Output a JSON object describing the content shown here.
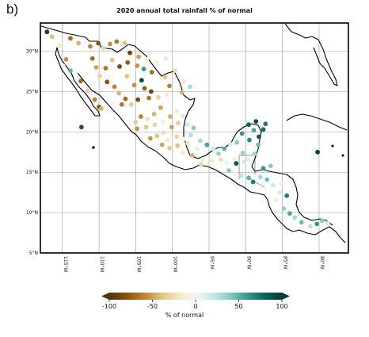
{
  "panel_label": "b)",
  "title": "2020 annual total rainfall % of normal",
  "lat_labels": [
    "30°N",
    "25°N",
    "20°N",
    "15°N",
    "10°N",
    "5°N"
  ],
  "lon_labels": [
    "115°W",
    "110°W",
    "105°W",
    "100°W",
    "95°W",
    "90°W",
    "85°W",
    "80°W"
  ],
  "colorbar": {
    "label": "% of normal",
    "ticks": [
      "-100",
      "-50",
      "0",
      "50",
      "100"
    ],
    "range": [
      -100,
      100
    ],
    "palette": [
      "#543005",
      "#8c510a",
      "#bf812d",
      "#dfc27d",
      "#f6e8c3",
      "#f5f5f5",
      "#c7eae5",
      "#80cdc1",
      "#35978f",
      "#01665e",
      "#003c30"
    ]
  },
  "map": {
    "lon_range": [
      -118,
      -76
    ],
    "lat_range": [
      5,
      33.5
    ],
    "projection": "plate-carree",
    "grid": true
  },
  "stations": [
    {
      "lon": -113.9,
      "lat": 31.6,
      "v": -70
    },
    {
      "lon": -112.8,
      "lat": 31.0,
      "v": -45
    },
    {
      "lon": -111.2,
      "lat": 30.6,
      "v": -60
    },
    {
      "lon": -110.1,
      "lat": 31.0,
      "v": -80
    },
    {
      "lon": -109.4,
      "lat": 30.4,
      "v": -30
    },
    {
      "lon": -108.5,
      "lat": 30.9,
      "v": -55
    },
    {
      "lon": -107.6,
      "lat": 31.2,
      "v": -65
    },
    {
      "lon": -106.5,
      "lat": 31.0,
      "v": -40
    },
    {
      "lon": -105.8,
      "lat": 29.8,
      "v": -90
    },
    {
      "lon": -104.6,
      "lat": 29.3,
      "v": -50
    },
    {
      "lon": -103.5,
      "lat": 29.0,
      "v": -20
    },
    {
      "lon": -102.2,
      "lat": 28.6,
      "v": -10
    },
    {
      "lon": -100.9,
      "lat": 29.1,
      "v": 10
    },
    {
      "lon": -99.6,
      "lat": 27.6,
      "v": -25
    },
    {
      "lon": -98.4,
      "lat": 26.2,
      "v": -15
    },
    {
      "lon": -97.6,
      "lat": 25.6,
      "v": 30
    },
    {
      "lon": -98.7,
      "lat": 24.9,
      "v": -45
    },
    {
      "lon": -100.4,
      "lat": 25.7,
      "v": -60
    },
    {
      "lon": -101.0,
      "lat": 26.8,
      "v": -35
    },
    {
      "lon": -102.8,
      "lat": 27.4,
      "v": -70
    },
    {
      "lon": -103.9,
      "lat": 27.8,
      "v": 60
    },
    {
      "lon": -104.8,
      "lat": 28.2,
      "v": -55
    },
    {
      "lon": -106.1,
      "lat": 28.6,
      "v": -75
    },
    {
      "lon": -107.2,
      "lat": 28.1,
      "v": -85
    },
    {
      "lon": -108.2,
      "lat": 28.9,
      "v": -40
    },
    {
      "lon": -109.1,
      "lat": 27.9,
      "v": -65
    },
    {
      "lon": -110.4,
      "lat": 28.0,
      "v": -50
    },
    {
      "lon": -110.9,
      "lat": 29.1,
      "v": -70
    },
    {
      "lon": -109.9,
      "lat": 26.9,
      "v": -30
    },
    {
      "lon": -108.9,
      "lat": 26.2,
      "v": -80
    },
    {
      "lon": -107.9,
      "lat": 25.6,
      "v": -60
    },
    {
      "lon": -107.3,
      "lat": 24.8,
      "v": -45
    },
    {
      "lon": -106.4,
      "lat": 24.1,
      "v": -70
    },
    {
      "lon": -105.6,
      "lat": 23.4,
      "v": -35
    },
    {
      "lon": -104.7,
      "lat": 24.0,
      "v": -85
    },
    {
      "lon": -103.8,
      "lat": 25.4,
      "v": -75
    },
    {
      "lon": -102.9,
      "lat": 25.0,
      "v": -90
    },
    {
      "lon": -103.2,
      "lat": 24.2,
      "v": -65
    },
    {
      "lon": -104.2,
      "lat": 26.4,
      "v": 95
    },
    {
      "lon": -105.2,
      "lat": 25.8,
      "v": -55
    },
    {
      "lon": -106.2,
      "lat": 26.9,
      "v": -40
    },
    {
      "lon": -101.9,
      "lat": 24.3,
      "v": -30
    },
    {
      "lon": -100.8,
      "lat": 24.6,
      "v": -20
    },
    {
      "lon": -101.6,
      "lat": 23.0,
      "v": -50
    },
    {
      "lon": -102.5,
      "lat": 22.2,
      "v": -45
    },
    {
      "lon": -103.4,
      "lat": 21.6,
      "v": -25
    },
    {
      "lon": -104.3,
      "lat": 21.9,
      "v": -60
    },
    {
      "lon": -105.0,
      "lat": 21.2,
      "v": -35
    },
    {
      "lon": -104.8,
      "lat": 20.4,
      "v": -55
    },
    {
      "lon": -103.6,
      "lat": 20.6,
      "v": -40
    },
    {
      "lon": -102.4,
      "lat": 20.9,
      "v": -30
    },
    {
      "lon": -101.3,
      "lat": 21.3,
      "v": -10
    },
    {
      "lon": -100.3,
      "lat": 21.9,
      "v": -45
    },
    {
      "lon": -99.4,
      "lat": 22.6,
      "v": -20
    },
    {
      "lon": -98.6,
      "lat": 22.0,
      "v": 15
    },
    {
      "lon": -99.2,
      "lat": 21.1,
      "v": -35
    },
    {
      "lon": -100.1,
      "lat": 20.6,
      "v": -50
    },
    {
      "lon": -101.2,
      "lat": 19.9,
      "v": -25
    },
    {
      "lon": -102.1,
      "lat": 19.5,
      "v": -40
    },
    {
      "lon": -103.0,
      "lat": 19.2,
      "v": -55
    },
    {
      "lon": -100.6,
      "lat": 19.0,
      "v": -15
    },
    {
      "lon": -99.4,
      "lat": 19.4,
      "v": -30
    },
    {
      "lon": -98.5,
      "lat": 19.1,
      "v": -5
    },
    {
      "lon": -97.5,
      "lat": 19.6,
      "v": 25
    },
    {
      "lon": -97.1,
      "lat": 20.5,
      "v": 40
    },
    {
      "lon": -98.0,
      "lat": 20.9,
      "v": 20
    },
    {
      "lon": -97.9,
      "lat": 18.6,
      "v": -20
    },
    {
      "lon": -99.3,
      "lat": 18.3,
      "v": -40
    },
    {
      "lon": -100.4,
      "lat": 18.0,
      "v": -35
    },
    {
      "lon": -101.4,
      "lat": 18.4,
      "v": -50
    },
    {
      "lon": -98.6,
      "lat": 17.4,
      "v": -15
    },
    {
      "lon": -97.3,
      "lat": 17.1,
      "v": -45
    },
    {
      "lon": -96.6,
      "lat": 17.9,
      "v": 10
    },
    {
      "lon": -96.2,
      "lat": 18.9,
      "v": 30
    },
    {
      "lon": -95.3,
      "lat": 18.4,
      "v": 55
    },
    {
      "lon": -94.4,
      "lat": 17.9,
      "v": 20
    },
    {
      "lon": -93.7,
      "lat": 17.3,
      "v": 35
    },
    {
      "lon": -92.9,
      "lat": 17.9,
      "v": 50
    },
    {
      "lon": -92.1,
      "lat": 18.5,
      "v": 15
    },
    {
      "lon": -91.2,
      "lat": 18.7,
      "v": 40
    },
    {
      "lon": -90.5,
      "lat": 19.8,
      "v": 60
    },
    {
      "lon": -89.6,
      "lat": 20.9,
      "v": 80
    },
    {
      "lon": -88.6,
      "lat": 21.3,
      "v": 90
    },
    {
      "lon": -87.3,
      "lat": 21.0,
      "v": 70
    },
    {
      "lon": -88.9,
      "lat": 20.2,
      "v": 55
    },
    {
      "lon": -88.2,
      "lat": 19.4,
      "v": 85
    },
    {
      "lon": -87.6,
      "lat": 20.3,
      "v": 75
    },
    {
      "lon": -89.5,
      "lat": 19.0,
      "v": 65
    },
    {
      "lon": -88.3,
      "lat": 18.4,
      "v": 45
    },
    {
      "lon": -88.8,
      "lat": 17.3,
      "v": 30
    },
    {
      "lon": -89.7,
      "lat": 16.6,
      "v": 10
    },
    {
      "lon": -90.4,
      "lat": 17.4,
      "v": 35
    },
    {
      "lon": -91.5,
      "lat": 16.6,
      "v": -10
    },
    {
      "lon": -92.6,
      "lat": 16.2,
      "v": 5
    },
    {
      "lon": -93.4,
      "lat": 16.6,
      "v": -25
    },
    {
      "lon": -94.6,
      "lat": 16.4,
      "v": -15
    },
    {
      "lon": -95.9,
      "lat": 16.6,
      "v": -20
    },
    {
      "lon": -92.3,
      "lat": 15.2,
      "v": 40
    },
    {
      "lon": -91.4,
      "lat": 14.8,
      "v": -5
    },
    {
      "lon": -90.6,
      "lat": 14.6,
      "v": 25
    },
    {
      "lon": -89.6,
      "lat": 14.3,
      "v": 50
    },
    {
      "lon": -89.0,
      "lat": 13.8,
      "v": 70
    },
    {
      "lon": -88.0,
      "lat": 14.4,
      "v": 30
    },
    {
      "lon": -87.1,
      "lat": 14.1,
      "v": 45
    },
    {
      "lon": -86.3,
      "lat": 13.4,
      "v": 20
    },
    {
      "lon": -87.6,
      "lat": 15.5,
      "v": 60
    },
    {
      "lon": -86.6,
      "lat": 15.8,
      "v": 40
    },
    {
      "lon": -85.4,
      "lat": 12.5,
      "v": 15
    },
    {
      "lon": -85.9,
      "lat": 11.6,
      "v": -15
    },
    {
      "lon": -84.8,
      "lat": 10.5,
      "v": 35
    },
    {
      "lon": -84.0,
      "lat": 9.9,
      "v": 55
    },
    {
      "lon": -83.3,
      "lat": 9.4,
      "v": 30
    },
    {
      "lon": -82.4,
      "lat": 8.8,
      "v": 45
    },
    {
      "lon": -81.2,
      "lat": 8.3,
      "v": 25
    },
    {
      "lon": -80.3,
      "lat": 8.6,
      "v": 60
    },
    {
      "lon": -79.6,
      "lat": 9.0,
      "v": 40
    },
    {
      "lon": -78.8,
      "lat": 8.7,
      "v": 20
    },
    {
      "lon": -85.2,
      "lat": 13.6,
      "v": -10
    },
    {
      "lon": -84.4,
      "lat": 12.1,
      "v": 70
    },
    {
      "lon": -117.1,
      "lat": 32.4,
      "v": 95
    },
    {
      "lon": -116.4,
      "lat": 31.8,
      "v": -40
    },
    {
      "lon": -115.4,
      "lat": 30.7,
      "v": -20
    },
    {
      "lon": -114.5,
      "lat": 29.0,
      "v": -55
    },
    {
      "lon": -113.9,
      "lat": 27.6,
      "v": 50
    },
    {
      "lon": -112.5,
      "lat": 26.3,
      "v": -70
    },
    {
      "lon": -111.6,
      "lat": 25.1,
      "v": -30
    },
    {
      "lon": -110.6,
      "lat": 24.0,
      "v": -60
    },
    {
      "lon": -110.0,
      "lat": 23.1,
      "v": -80
    },
    {
      "lon": -114.9,
      "lat": 28.2,
      "v": -10
    },
    {
      "lon": -109.7,
      "lat": 22.9,
      "v": -45
    },
    {
      "lon": -112.4,
      "lat": 20.6,
      "v": -95
    },
    {
      "lon": -96.1,
      "lat": 16.0,
      "v": -30
    },
    {
      "lon": -91.3,
      "lat": 16.1,
      "v": 85
    },
    {
      "lon": -90.2,
      "lat": 16.3,
      "v": 20
    },
    {
      "lon": -80.2,
      "lat": 17.5,
      "v": 95
    },
    {
      "lon": -106.9,
      "lat": 23.4,
      "v": -65
    }
  ]
}
